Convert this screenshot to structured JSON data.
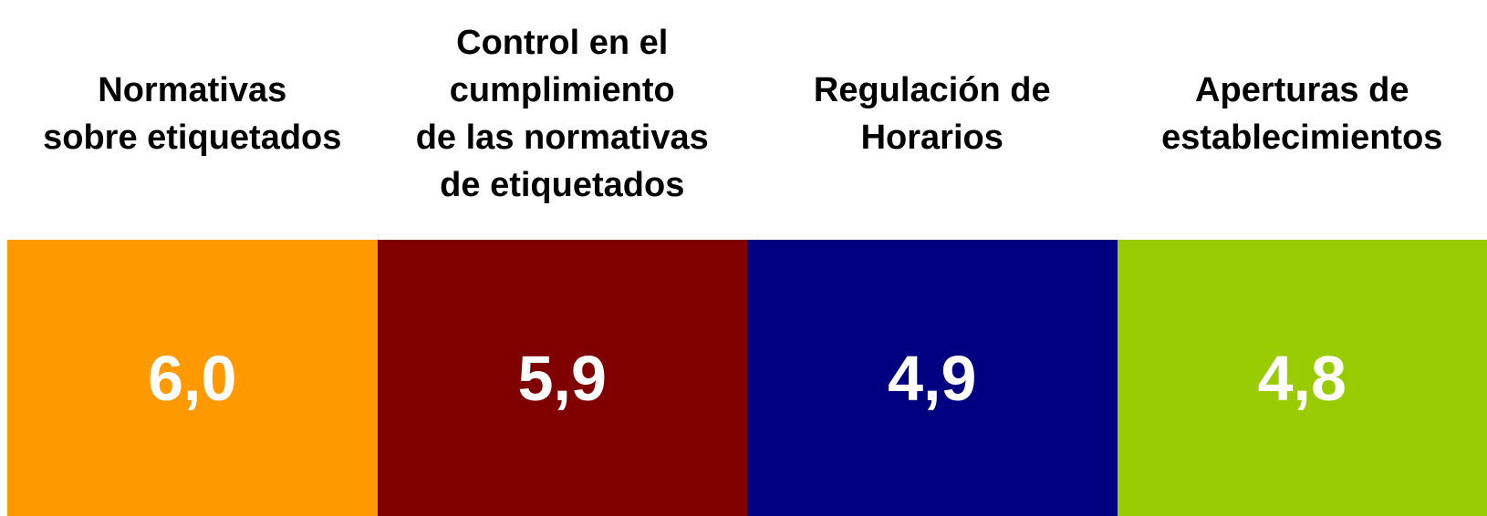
{
  "tiles": [
    {
      "label": [
        "Normativas",
        "sobre etiquetados"
      ],
      "value": "6,0",
      "color": "#ff9900"
    },
    {
      "label": [
        "Control en el",
        "cumplimiento",
        "de las normativas",
        "de etiquetados"
      ],
      "value": "5,9",
      "color": "#800000"
    },
    {
      "label": [
        "Regulación de",
        "Horarios"
      ],
      "value": "4,9",
      "color": "#000080"
    },
    {
      "label": [
        "Aperturas de",
        "establecimientos"
      ],
      "value": "4,8",
      "color": "#99cc00"
    }
  ]
}
